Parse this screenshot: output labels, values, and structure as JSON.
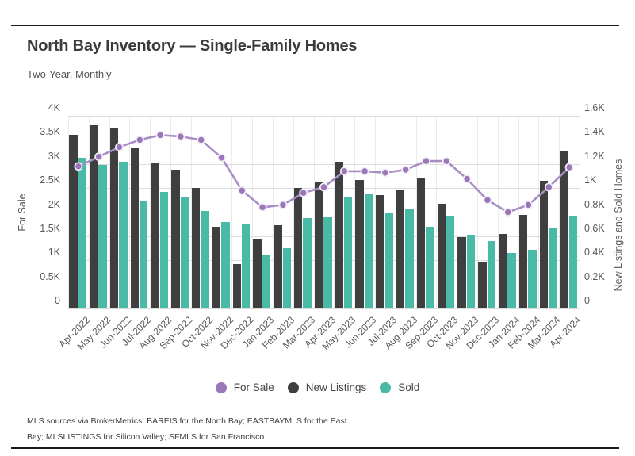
{
  "page": {
    "title": "North Bay Inventory — Single-Family Homes",
    "subtitle": "Two-Year, Monthly",
    "footer_line1": "MLS sources via BrokerMetrics: BAREIS for the North Bay; EASTBAYMLS for the East",
    "footer_line2": "Bay; MLSLISTINGS for Silicon Valley; SFMLS for San Francisco"
  },
  "colors": {
    "for_sale": "#9b76b8",
    "for_sale_line": "#a78fc6",
    "point_ring": "#f3eff8",
    "new_listings": "#3f3f3f",
    "sold": "#48baa5",
    "grid": "#dcdcdc",
    "grid_vertical": "#ebebeb",
    "axis_text": "#595959"
  },
  "chart_data": {
    "type": "bar",
    "subtype": "grouped-bars-with-line-overlay",
    "title": "North Bay Inventory — Single-Family Homes",
    "subtitle": "Two-Year, Monthly",
    "grid": true,
    "legend_position": "bottom",
    "categories": [
      "Apr-2022",
      "May-2022",
      "Jun-2022",
      "Jul-2022",
      "Aug-2022",
      "Sep-2022",
      "Oct-2022",
      "Nov-2022",
      "Dec-2022",
      "Jan-2023",
      "Feb-2023",
      "Mar-2023",
      "Apr-2023",
      "May-2023",
      "Jun-2023",
      "Jul-2023",
      "Aug-2023",
      "Sep-2023",
      "Oct-2023",
      "Nov-2023",
      "Dec-2023",
      "Jan-2024",
      "Feb-2024",
      "Mar-2024",
      "Apr-2024"
    ],
    "series": [
      {
        "name": "For Sale",
        "render": "line",
        "axis": "left",
        "values": [
          2950,
          3150,
          3350,
          3500,
          3600,
          3570,
          3500,
          3130,
          2450,
          2100,
          2150,
          2400,
          2520,
          2850,
          2850,
          2820,
          2880,
          3060,
          3060,
          2690,
          2250,
          2000,
          2150,
          2520,
          2930
        ]
      },
      {
        "name": "New Listings",
        "render": "bar",
        "axis": "right",
        "values": [
          1440,
          1530,
          1500,
          1330,
          1210,
          1150,
          1000,
          680,
          370,
          570,
          690,
          1000,
          1050,
          1220,
          1070,
          940,
          990,
          1080,
          870,
          590,
          380,
          620,
          780,
          1060,
          1310
        ]
      },
      {
        "name": "Sold",
        "render": "bar",
        "axis": "right",
        "values": [
          1250,
          1190,
          1220,
          890,
          970,
          930,
          810,
          720,
          700,
          440,
          500,
          750,
          760,
          920,
          950,
          800,
          820,
          680,
          770,
          610,
          560,
          460,
          490,
          670,
          770
        ]
      }
    ],
    "left_axis": {
      "label": "For Sale",
      "min": 0,
      "max": 4000,
      "tick_step": 500,
      "tick_labels": [
        "0",
        "0.5K",
        "1K",
        "1.5K",
        "2K",
        "2.5K",
        "3K",
        "3.5K",
        "4K"
      ]
    },
    "right_axis": {
      "label": "New Listings and Sold Homes",
      "min": 0,
      "max": 1600,
      "tick_step": 200,
      "tick_labels": [
        "0",
        "0.2K",
        "0.4K",
        "0.6K",
        "0.8K",
        "1K",
        "1.2K",
        "1.4K",
        "1.6K"
      ]
    }
  },
  "legend": {
    "items": [
      {
        "label": "For Sale",
        "color": "#9b76b8"
      },
      {
        "label": "New Listings",
        "color": "#3f3f3f"
      },
      {
        "label": "Sold",
        "color": "#48baa5"
      }
    ]
  }
}
